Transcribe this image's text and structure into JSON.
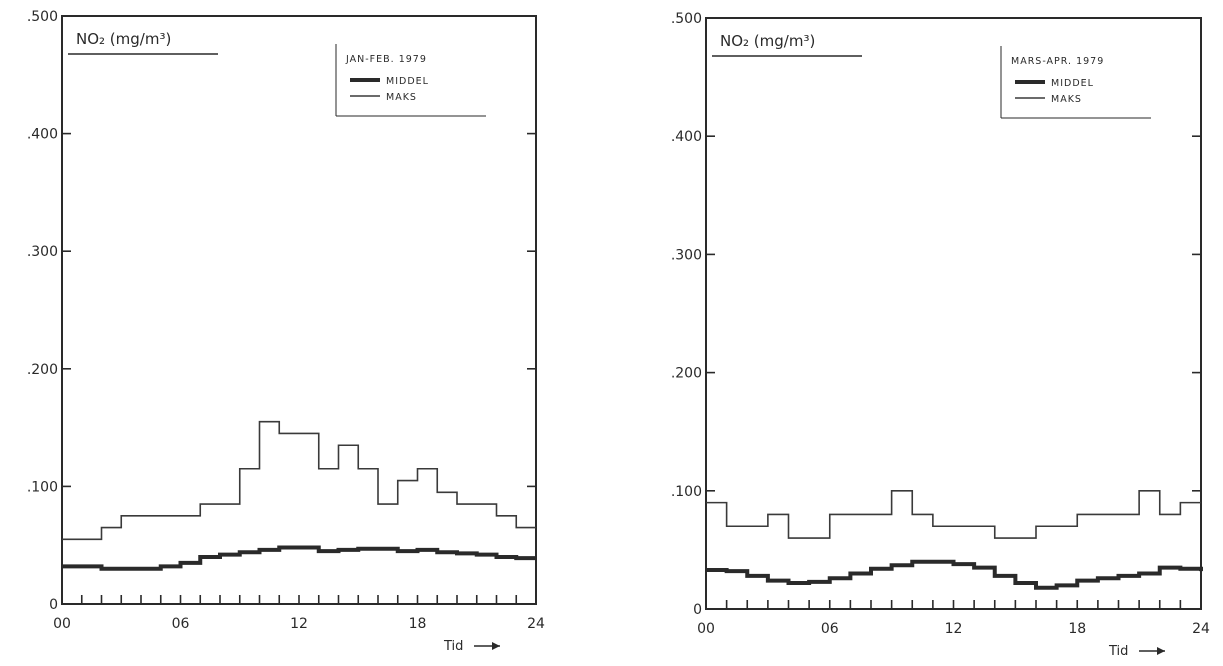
{
  "chart_data": [
    {
      "type": "line",
      "title": "NO₂ (mg/m³)",
      "period": "JAN-FEB. 1979",
      "xlabel": "Tid",
      "x_tick_labels": [
        "00",
        "06",
        "12",
        "18",
        "24"
      ],
      "y_tick_labels": [
        ".500",
        ".400",
        ".300",
        ".200",
        ".100",
        "0"
      ],
      "y_ticks": [
        0.5,
        0.4,
        0.3,
        0.2,
        0.1,
        0
      ],
      "x_ticks": [
        0,
        6,
        12,
        18,
        24
      ],
      "xlim": [
        0,
        24
      ],
      "ylim": [
        0,
        0.5
      ],
      "legend_position": "top-right",
      "series": [
        {
          "name": "MIDDEL",
          "style": "thick",
          "x": [
            0,
            1,
            2,
            3,
            4,
            5,
            6,
            7,
            8,
            9,
            10,
            11,
            12,
            13,
            14,
            15,
            16,
            17,
            18,
            19,
            20,
            21,
            22,
            23,
            24
          ],
          "values": [
            0.032,
            0.032,
            0.03,
            0.03,
            0.03,
            0.032,
            0.035,
            0.04,
            0.042,
            0.044,
            0.046,
            0.048,
            0.048,
            0.045,
            0.046,
            0.047,
            0.047,
            0.045,
            0.046,
            0.044,
            0.043,
            0.042,
            0.04,
            0.039,
            0.039
          ]
        },
        {
          "name": "MAKS",
          "style": "thin-step",
          "x": [
            0,
            2,
            2.5,
            3,
            7,
            9,
            10,
            11,
            13,
            14,
            15,
            16,
            17,
            18,
            19,
            20,
            22,
            23,
            24
          ],
          "values": [
            0.055,
            0.065,
            0.065,
            0.075,
            0.085,
            0.115,
            0.155,
            0.145,
            0.115,
            0.135,
            0.115,
            0.085,
            0.105,
            0.115,
            0.095,
            0.085,
            0.075,
            0.065,
            0.065
          ]
        }
      ]
    },
    {
      "type": "line",
      "title": "NO₂ (mg/m³)",
      "period": "MARS-APR. 1979",
      "xlabel": "Tid",
      "x_tick_labels": [
        "00",
        "06",
        "12",
        "18",
        "24"
      ],
      "y_tick_labels": [
        ".500",
        ".400",
        ".300",
        ".200",
        ".100",
        "0"
      ],
      "y_ticks": [
        0.5,
        0.4,
        0.3,
        0.2,
        0.1,
        0
      ],
      "x_ticks": [
        0,
        6,
        12,
        18,
        24
      ],
      "xlim": [
        0,
        24
      ],
      "ylim": [
        0,
        0.5
      ],
      "legend_position": "top-right",
      "series": [
        {
          "name": "MIDDEL",
          "style": "thick",
          "x": [
            0,
            1,
            2,
            3,
            4,
            5,
            6,
            7,
            8,
            9,
            10,
            11,
            12,
            13,
            14,
            15,
            16,
            17,
            18,
            19,
            20,
            21,
            22,
            23,
            24
          ],
          "values": [
            0.033,
            0.032,
            0.028,
            0.024,
            0.022,
            0.023,
            0.026,
            0.03,
            0.034,
            0.037,
            0.04,
            0.04,
            0.038,
            0.035,
            0.028,
            0.022,
            0.018,
            0.02,
            0.024,
            0.026,
            0.028,
            0.03,
            0.035,
            0.034,
            0.032
          ]
        },
        {
          "name": "MAKS",
          "style": "thin-step",
          "x": [
            0,
            1,
            3,
            4,
            6,
            9,
            10,
            11,
            14,
            16,
            18,
            21,
            22,
            23,
            24
          ],
          "values": [
            0.09,
            0.07,
            0.08,
            0.06,
            0.08,
            0.1,
            0.08,
            0.07,
            0.06,
            0.07,
            0.08,
            0.1,
            0.08,
            0.09,
            0.09
          ]
        }
      ]
    }
  ]
}
